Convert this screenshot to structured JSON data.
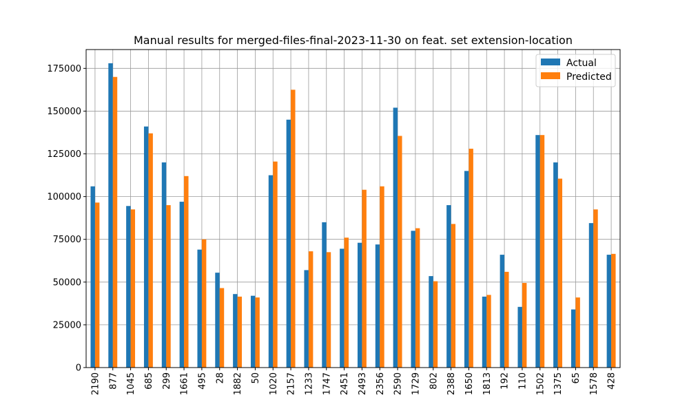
{
  "chart_data": {
    "type": "bar",
    "title": "Manual results for merged-files-final-2023-11-30 on feat. set extension-location",
    "xlabel": "",
    "ylabel": "",
    "ylim": [
      0,
      186000
    ],
    "yticks": [
      0,
      25000,
      50000,
      75000,
      100000,
      125000,
      150000,
      175000
    ],
    "grid": true,
    "legend_position": "top-right",
    "categories": [
      "2190",
      "877",
      "1045",
      "685",
      "299",
      "1661",
      "495",
      "28",
      "1882",
      "50",
      "1020",
      "2157",
      "1233",
      "1747",
      "2451",
      "2493",
      "2356",
      "2590",
      "1729",
      "802",
      "2388",
      "1650",
      "1813",
      "192",
      "110",
      "1502",
      "1375",
      "65",
      "1578",
      "428"
    ],
    "series": [
      {
        "name": "Actual",
        "color": "#1f77b4",
        "values": [
          106000,
          178000,
          94500,
          141000,
          120000,
          97000,
          69000,
          55500,
          43000,
          42000,
          112500,
          145000,
          57000,
          85000,
          69500,
          73000,
          72000,
          152000,
          80000,
          53500,
          95000,
          115000,
          41500,
          66000,
          35500,
          136000,
          120000,
          34000,
          84500,
          66000
        ]
      },
      {
        "name": "Predicted",
        "color": "#ff7f0e",
        "values": [
          96500,
          170000,
          92500,
          137000,
          95000,
          112000,
          75000,
          46500,
          41500,
          41000,
          120500,
          162500,
          68000,
          67500,
          76000,
          104000,
          106000,
          135500,
          81500,
          50500,
          84000,
          128000,
          42500,
          56000,
          49500,
          136000,
          110500,
          41000,
          92500,
          66500
        ]
      }
    ]
  }
}
